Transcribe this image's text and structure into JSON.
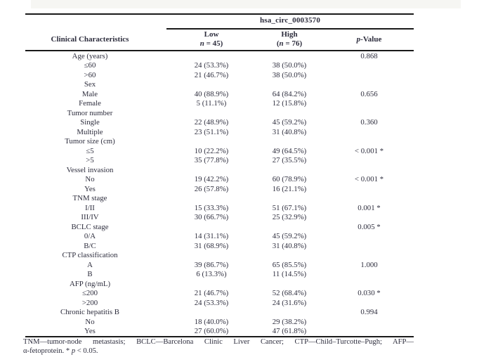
{
  "table": {
    "span_header": "hsa_circ_0003570",
    "header": {
      "characteristics": "Clinical Characteristics",
      "low": {
        "line1": "Low",
        "pre": "",
        "n": "n",
        "post": " = 45)"
      },
      "high": {
        "line1": "High",
        "pre": "(",
        "n": "n",
        "post": " = 76)"
      },
      "p": {
        "italic": "p",
        "rest": "-Value"
      }
    },
    "rows": [
      {
        "label": "Age (years)",
        "low": "",
        "high": "",
        "p": "0.868"
      },
      {
        "label": "≤60",
        "low": "24 (53.3%)",
        "high": "38 (50.0%)",
        "p": ""
      },
      {
        "label": ">60",
        "low": "21 (46.7%)",
        "high": "38 (50.0%)",
        "p": ""
      },
      {
        "label": "Sex",
        "low": "",
        "high": "",
        "p": ""
      },
      {
        "label": "Male",
        "low": "40 (88.9%)",
        "high": "64 (84.2%)",
        "p": "0.656"
      },
      {
        "label": "Female",
        "low": "5 (11.1%)",
        "high": "12 (15.8%)",
        "p": ""
      },
      {
        "label": "Tumor number",
        "low": "",
        "high": "",
        "p": ""
      },
      {
        "label": "Single",
        "low": "22 (48.9%)",
        "high": "45 (59.2%)",
        "p": "0.360"
      },
      {
        "label": "Multiple",
        "low": "23 (51.1%)",
        "high": "31 (40.8%)",
        "p": ""
      },
      {
        "label": "Tumor size (cm)",
        "low": "",
        "high": "",
        "p": ""
      },
      {
        "label": "≤5",
        "low": "10 (22.2%)",
        "high": "49 (64.5%)",
        "p": "< 0.001 *"
      },
      {
        "label": ">5",
        "low": "35 (77.8%)",
        "high": "27 (35.5%)",
        "p": ""
      },
      {
        "label": "Vessel invasion",
        "low": "",
        "high": "",
        "p": ""
      },
      {
        "label": "No",
        "low": "19 (42.2%)",
        "high": "60 (78.9%)",
        "p": "< 0.001 *"
      },
      {
        "label": "Yes",
        "low": "26 (57.8%)",
        "high": "16 (21.1%)",
        "p": ""
      },
      {
        "label": "TNM stage",
        "low": "",
        "high": "",
        "p": ""
      },
      {
        "label": "I/II",
        "low": "15 (33.3%)",
        "high": "51 (67.1%)",
        "p": "0.001 *"
      },
      {
        "label": "III/IV",
        "low": "30 (66.7%)",
        "high": "25 (32.9%)",
        "p": ""
      },
      {
        "label": "BCLC stage",
        "low": "",
        "high": "",
        "p": "0.005 *"
      },
      {
        "label": "0/A",
        "low": "14 (31.1%)",
        "high": "45 (59.2%)",
        "p": ""
      },
      {
        "label": "B/C",
        "low": "31 (68.9%)",
        "high": "31 (40.8%)",
        "p": ""
      },
      {
        "label": "CTP classification",
        "low": "",
        "high": "",
        "p": ""
      },
      {
        "label": "A",
        "low": "39 (86.7%)",
        "high": "65 (85.5%)",
        "p": "1.000"
      },
      {
        "label": "B",
        "low": "6 (13.3%)",
        "high": "11 (14.5%)",
        "p": ""
      },
      {
        "label": "AFP (ng/mL)",
        "low": "",
        "high": "",
        "p": ""
      },
      {
        "label": "≤200",
        "low": "21 (46.7%)",
        "high": "52 (68.4%)",
        "p": "0.030 *"
      },
      {
        "label": ">200",
        "low": "24 (53.3%)",
        "high": "24 (31.6%)",
        "p": ""
      },
      {
        "label": "Chronic hepatitis B",
        "low": "",
        "high": "",
        "p": "0.994"
      },
      {
        "label": "No",
        "low": "18 (40.0%)",
        "high": "29 (38.2%)",
        "p": ""
      },
      {
        "label": "Yes",
        "low": "27 (60.0%)",
        "high": "47 (61.8%)",
        "p": ""
      }
    ],
    "footnote": {
      "line1": "TNM—tumor-node metastasis; BCLC—Barcelona Clinic Liver Cancer; CTP—Child–Turcotte–Pugh; AFP—",
      "line2_pre": "α-fetoprotein. * ",
      "line2_p": "p",
      "line2_post": " < 0.05."
    }
  }
}
